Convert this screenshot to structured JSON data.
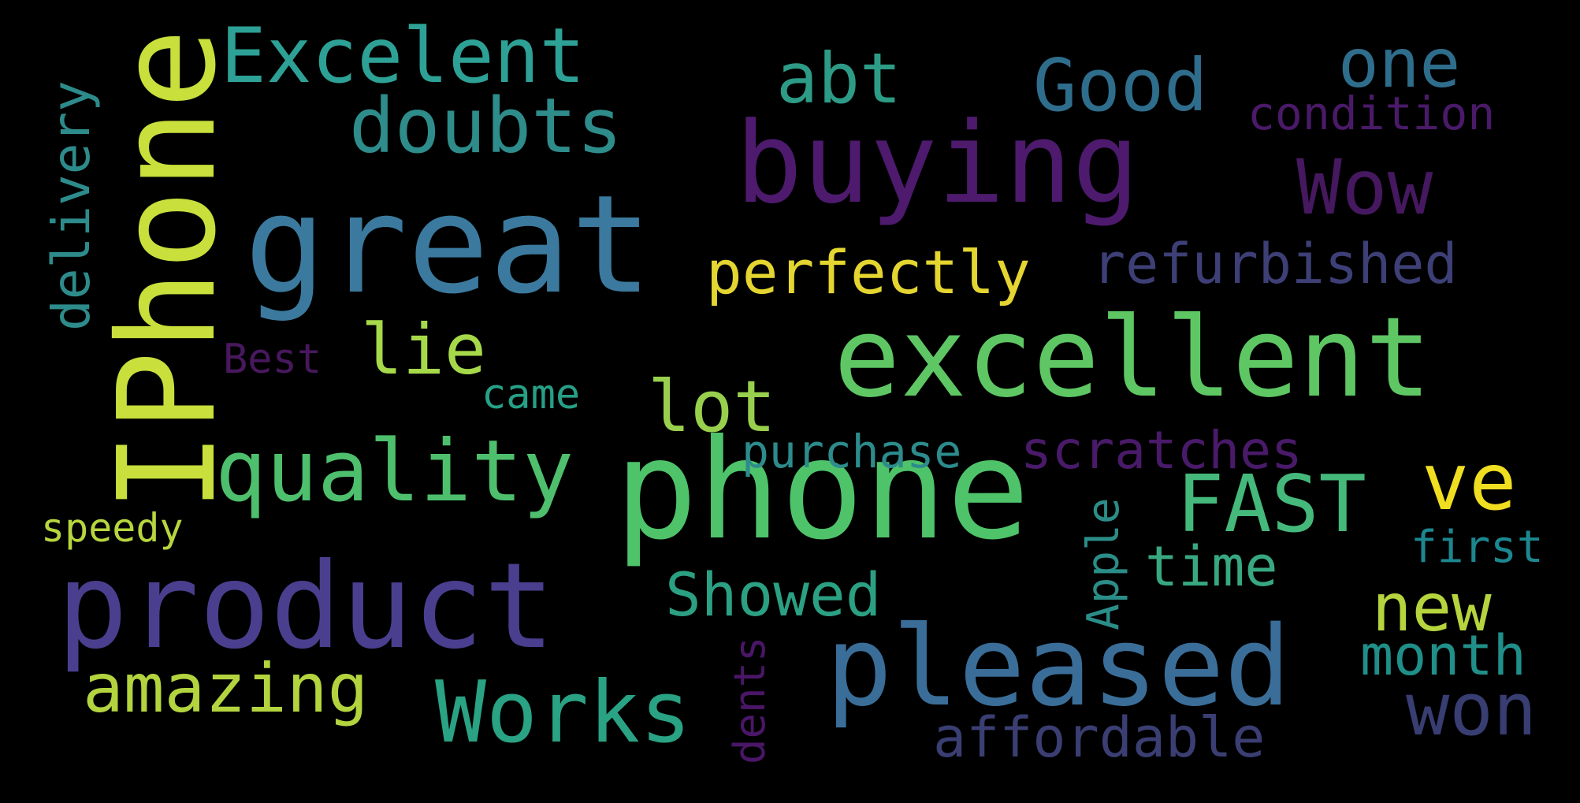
{
  "wordcloud": {
    "background": "#000000",
    "words": [
      {
        "id": "great",
        "text": "great",
        "color": "#3b7a9e"
      },
      {
        "id": "phone",
        "text": "phone",
        "color": "#4ec36a"
      },
      {
        "id": "IPhone",
        "text": "IPhone",
        "color": "#c8df3c"
      },
      {
        "id": "product",
        "text": "product",
        "color": "#4a3f8e"
      },
      {
        "id": "excellent",
        "text": "excellent",
        "color": "#5ec764"
      },
      {
        "id": "pleased",
        "text": "pleased",
        "color": "#3a6e98"
      },
      {
        "id": "buying",
        "text": "buying",
        "color": "#4d1a6d"
      },
      {
        "id": "Excelent",
        "text": "Excelent",
        "color": "#2ea196"
      },
      {
        "id": "doubts",
        "text": "doubts",
        "color": "#2e8c8b"
      },
      {
        "id": "abt",
        "text": "abt",
        "color": "#2d9b86"
      },
      {
        "id": "Good",
        "text": "Good",
        "color": "#2f6d8c"
      },
      {
        "id": "one",
        "text": "one",
        "color": "#2f6d8c"
      },
      {
        "id": "condition",
        "text": "condition",
        "color": "#4a1a69"
      },
      {
        "id": "Wow",
        "text": "Wow",
        "color": "#45185f"
      },
      {
        "id": "perfectly",
        "text": "perfectly",
        "color": "#e4d531"
      },
      {
        "id": "refurbished",
        "text": "refurbished",
        "color": "#3d3f76"
      },
      {
        "id": "delivery",
        "text": "delivery",
        "color": "#2e8b8b"
      },
      {
        "id": "lie",
        "text": "lie",
        "color": "#a6d94a"
      },
      {
        "id": "lot",
        "text": "lot",
        "color": "#98d04e"
      },
      {
        "id": "Best",
        "text": "Best",
        "color": "#48185e"
      },
      {
        "id": "came",
        "text": "came",
        "color": "#26a086"
      },
      {
        "id": "quality",
        "text": "quality",
        "color": "#4ebf6d"
      },
      {
        "id": "purchase",
        "text": "purchase",
        "color": "#2d8b8c"
      },
      {
        "id": "scratches",
        "text": "scratches",
        "color": "#4a1a6a"
      },
      {
        "id": "FAST",
        "text": "FAST",
        "color": "#45b87b"
      },
      {
        "id": "ve",
        "text": "ve",
        "color": "#f0de21"
      },
      {
        "id": "speedy",
        "text": "speedy",
        "color": "#b7d63e"
      },
      {
        "id": "Apple",
        "text": "Apple",
        "color": "#2b8d88"
      },
      {
        "id": "time",
        "text": "time",
        "color": "#38a881"
      },
      {
        "id": "first",
        "text": "first",
        "color": "#1c8790"
      },
      {
        "id": "Showed",
        "text": "Showed",
        "color": "#2ba082"
      },
      {
        "id": "new",
        "text": "new",
        "color": "#b5d43d"
      },
      {
        "id": "month",
        "text": "month",
        "color": "#218f89"
      },
      {
        "id": "amazing",
        "text": "amazing",
        "color": "#b3d43f"
      },
      {
        "id": "Works",
        "text": "Works",
        "color": "#2aa284"
      },
      {
        "id": "dents",
        "text": "dents",
        "color": "#4a1667"
      },
      {
        "id": "affordable",
        "text": "affordable",
        "color": "#3a3e72"
      },
      {
        "id": "won",
        "text": "won",
        "color": "#383d72"
      }
    ]
  }
}
